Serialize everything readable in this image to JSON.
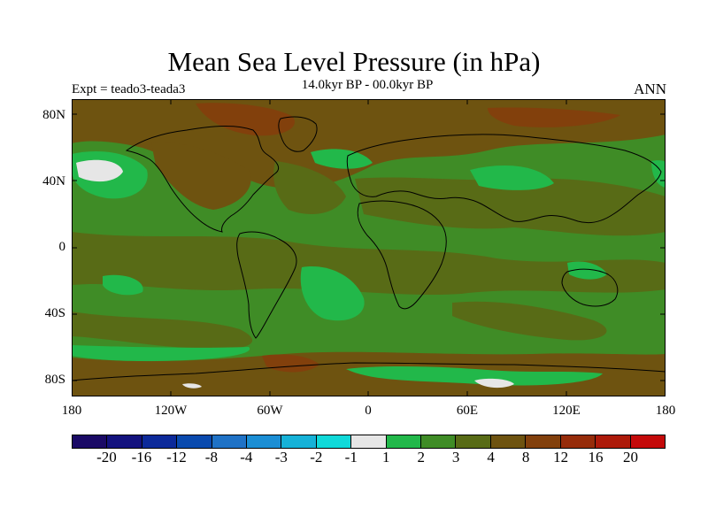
{
  "title": "Mean Sea Level Pressure (in hPa)",
  "subtitle": "14.0kyr BP - 00.0kyr BP",
  "left_label": "Expt = teado3-teada3",
  "right_label": "ANN",
  "y_ticks": [
    "80N",
    "40N",
    "0",
    "40S",
    "80S"
  ],
  "x_ticks": [
    "180",
    "120W",
    "60W",
    "0",
    "60E",
    "120E",
    "180"
  ],
  "colors": {
    "scale": [
      "#1a0a66",
      "#13127e",
      "#0c2a9a",
      "#0a4aae",
      "#1f72c6",
      "#1b8ed4",
      "#16b2d8",
      "#10d9d9",
      "#e6e6e6",
      "#22b84a",
      "#3f8c26",
      "#586b16",
      "#6e5310",
      "#82400c",
      "#962c0a",
      "#ad1a0a",
      "#c40a0a"
    ],
    "ocean_base": "#3f8c26",
    "land_base": "#586b16"
  },
  "legend_labels": [
    "-20",
    "-16",
    "-12",
    "-8",
    "-4",
    "-3",
    "-2",
    "-1",
    "1",
    "2",
    "3",
    "4",
    "8",
    "12",
    "16",
    "20"
  ]
}
